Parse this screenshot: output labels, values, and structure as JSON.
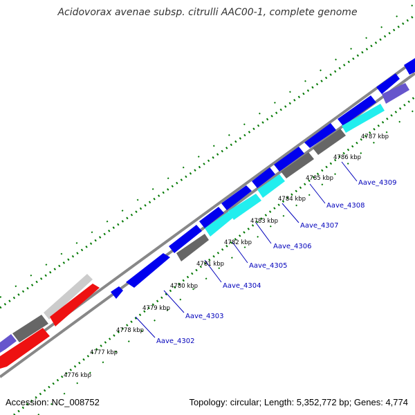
{
  "title": "Acidovorax avenae subsp. citrulli AAC00-1, complete genome",
  "accession": "Accession: NC_008752",
  "topology": "Topology: circular; Length: 5,352,772 bp; Genes: 4,774",
  "ticks": [
    "4776 kbp",
    "4777 kbp",
    "4778 kbp",
    "4779 kbp",
    "4780 kbp",
    "4781 kbp",
    "4782 kbp",
    "4783 kbp",
    "4784 kbp",
    "4785 kbp",
    "4786 kbp",
    "4787 kbp"
  ],
  "genes": [
    "Aave_4302",
    "Aave_4303",
    "Aave_4304",
    "Aave_4305",
    "Aave_4306",
    "Aave_4307",
    "Aave_4308",
    "Aave_4309"
  ],
  "colors": {
    "cds": "#0000ee",
    "cog_cyan": "#22eeee",
    "cog_gray": "#666666",
    "cog_light_gray": "#cccccc",
    "cog_red": "#ee1111",
    "cog_purple": "#6655cc",
    "backbone": "#888888",
    "gc_dots": "#007700",
    "label": "#0000bb"
  }
}
